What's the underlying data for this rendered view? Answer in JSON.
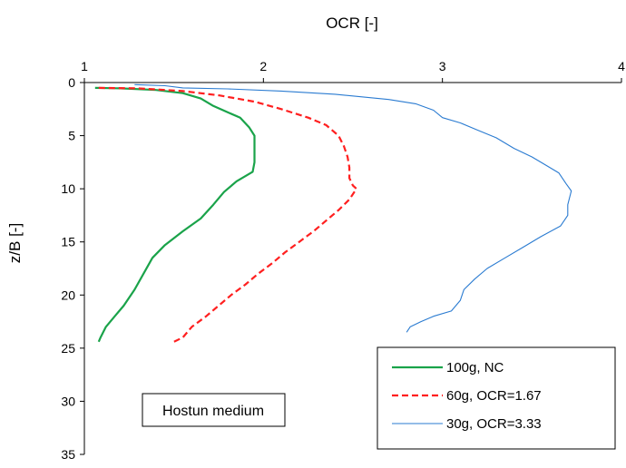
{
  "chart_data": {
    "type": "line",
    "title": "",
    "xlabel": "OCR [-]",
    "ylabel": "z/B [-]",
    "x_axis_position": "top",
    "y_axis_inverted": true,
    "xlim": [
      1,
      4
    ],
    "ylim": [
      0,
      35
    ],
    "xticks": [
      "1",
      "2",
      "3",
      "4"
    ],
    "yticks": [
      "0",
      "5",
      "10",
      "15",
      "20",
      "25",
      "30",
      "35"
    ],
    "grid": false,
    "legend_placement": "bottom-right",
    "annotation": "Hostun medium",
    "series": [
      {
        "name": "100g, NC",
        "color": "#1aa34a",
        "dash": "solid",
        "points": [
          [
            1.06,
            0.5
          ],
          [
            1.2,
            0.55
          ],
          [
            1.4,
            0.7
          ],
          [
            1.55,
            1.0
          ],
          [
            1.65,
            1.5
          ],
          [
            1.72,
            2.2
          ],
          [
            1.8,
            2.8
          ],
          [
            1.87,
            3.3
          ],
          [
            1.92,
            4.2
          ],
          [
            1.95,
            5.0
          ],
          [
            1.95,
            6.0
          ],
          [
            1.95,
            7.5
          ],
          [
            1.94,
            8.4
          ],
          [
            1.85,
            9.3
          ],
          [
            1.78,
            10.3
          ],
          [
            1.72,
            11.5
          ],
          [
            1.65,
            12.8
          ],
          [
            1.55,
            14.0
          ],
          [
            1.45,
            15.3
          ],
          [
            1.38,
            16.5
          ],
          [
            1.33,
            18.0
          ],
          [
            1.28,
            19.5
          ],
          [
            1.22,
            21.0
          ],
          [
            1.17,
            22.0
          ],
          [
            1.12,
            23.0
          ],
          [
            1.09,
            24.0
          ],
          [
            1.08,
            24.4
          ]
        ]
      },
      {
        "name": "60g, OCR=1.67",
        "color": "#ff1f1f",
        "dash": "dashed",
        "points": [
          [
            1.08,
            0.5
          ],
          [
            1.3,
            0.55
          ],
          [
            1.55,
            0.8
          ],
          [
            1.75,
            1.2
          ],
          [
            1.95,
            1.8
          ],
          [
            2.1,
            2.5
          ],
          [
            2.25,
            3.3
          ],
          [
            2.35,
            4.0
          ],
          [
            2.42,
            5.0
          ],
          [
            2.45,
            6.0
          ],
          [
            2.47,
            7.0
          ],
          [
            2.48,
            8.0
          ],
          [
            2.48,
            9.0
          ],
          [
            2.5,
            9.7
          ],
          [
            2.52,
            10.0
          ],
          [
            2.48,
            11.0
          ],
          [
            2.42,
            12.0
          ],
          [
            2.35,
            13.0
          ],
          [
            2.28,
            14.0
          ],
          [
            2.2,
            15.0
          ],
          [
            2.12,
            16.0
          ],
          [
            2.05,
            17.0
          ],
          [
            1.97,
            18.0
          ],
          [
            1.9,
            19.0
          ],
          [
            1.82,
            20.0
          ],
          [
            1.75,
            21.0
          ],
          [
            1.68,
            22.0
          ],
          [
            1.6,
            23.0
          ],
          [
            1.55,
            24.0
          ],
          [
            1.5,
            24.4
          ]
        ]
      },
      {
        "name": "30g, OCR=3.33",
        "color": "#2a7bd1",
        "dash": "solid",
        "points": [
          [
            1.28,
            0.2
          ],
          [
            1.45,
            0.3
          ],
          [
            1.55,
            0.5
          ],
          [
            1.8,
            0.6
          ],
          [
            2.1,
            0.8
          ],
          [
            2.4,
            1.1
          ],
          [
            2.7,
            1.6
          ],
          [
            2.85,
            2.0
          ],
          [
            2.95,
            2.6
          ],
          [
            3.0,
            3.3
          ],
          [
            3.1,
            3.8
          ],
          [
            3.2,
            4.5
          ],
          [
            3.3,
            5.2
          ],
          [
            3.4,
            6.2
          ],
          [
            3.5,
            7.0
          ],
          [
            3.58,
            7.8
          ],
          [
            3.65,
            8.5
          ],
          [
            3.69,
            9.5
          ],
          [
            3.72,
            10.2
          ],
          [
            3.7,
            11.5
          ],
          [
            3.7,
            12.5
          ],
          [
            3.66,
            13.5
          ],
          [
            3.55,
            14.5
          ],
          [
            3.45,
            15.5
          ],
          [
            3.35,
            16.5
          ],
          [
            3.25,
            17.5
          ],
          [
            3.18,
            18.5
          ],
          [
            3.12,
            19.5
          ],
          [
            3.1,
            20.5
          ],
          [
            3.05,
            21.5
          ],
          [
            2.95,
            22.0
          ],
          [
            2.88,
            22.5
          ],
          [
            2.82,
            23.0
          ],
          [
            2.8,
            23.5
          ]
        ]
      }
    ]
  }
}
